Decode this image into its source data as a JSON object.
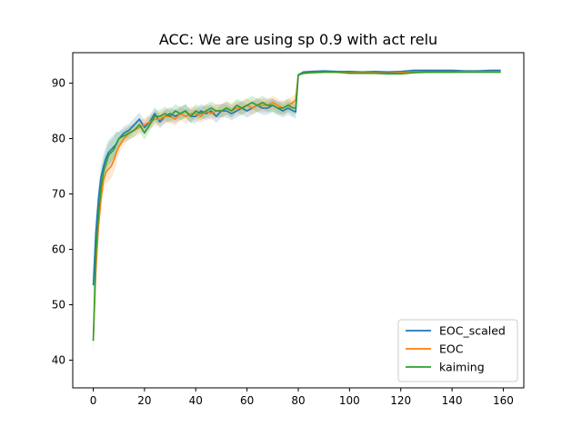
{
  "chart_data": {
    "type": "line",
    "title": "ACC: We are using sp 0.9 with act relu",
    "xlabel": "",
    "ylabel": "",
    "xlim": [
      -8,
      168
    ],
    "ylim": [
      35,
      95.5
    ],
    "xticks": [
      0,
      20,
      40,
      60,
      80,
      100,
      120,
      140,
      160
    ],
    "yticks": [
      40,
      50,
      60,
      70,
      80,
      90
    ],
    "grid": false,
    "legend_position": "lower-right",
    "series": [
      {
        "name": "EOC_scaled",
        "color": "#1f77b4",
        "x": [
          0,
          1,
          2,
          3,
          4,
          5,
          6,
          7,
          8,
          9,
          10,
          12,
          14,
          16,
          18,
          20,
          22,
          24,
          26,
          28,
          30,
          32,
          34,
          36,
          38,
          40,
          42,
          44,
          46,
          48,
          50,
          52,
          54,
          56,
          58,
          60,
          62,
          64,
          66,
          68,
          70,
          72,
          74,
          76,
          78,
          79,
          80,
          82,
          85,
          90,
          95,
          100,
          105,
          110,
          115,
          120,
          125,
          130,
          135,
          140,
          145,
          150,
          155,
          159
        ],
        "values": [
          53.5,
          63,
          69,
          73,
          75,
          76.5,
          77.5,
          78,
          78.5,
          79,
          80,
          81,
          81.5,
          82.5,
          83.5,
          82,
          83,
          84.5,
          83,
          84,
          84.5,
          84,
          84.5,
          85,
          84,
          84,
          85,
          84.5,
          85,
          84,
          85,
          85,
          84.5,
          85,
          85.5,
          85,
          85.5,
          86,
          85.5,
          85.5,
          86,
          85.5,
          85,
          85.5,
          85,
          84.8,
          91.5,
          92,
          92.1,
          92.2,
          92.1,
          92.1,
          92,
          92.1,
          92,
          92.1,
          92.3,
          92.3,
          92.3,
          92.3,
          92.2,
          92.2,
          92.3,
          92.3
        ]
      },
      {
        "name": "EOC",
        "color": "#ff7f0e",
        "x": [
          0,
          1,
          2,
          3,
          4,
          5,
          6,
          7,
          8,
          9,
          10,
          12,
          14,
          16,
          18,
          20,
          22,
          24,
          26,
          28,
          30,
          32,
          34,
          36,
          38,
          40,
          42,
          44,
          46,
          48,
          50,
          52,
          54,
          56,
          58,
          60,
          62,
          64,
          66,
          68,
          70,
          72,
          74,
          76,
          78,
          79,
          80,
          82,
          85,
          90,
          95,
          100,
          105,
          110,
          115,
          120,
          125,
          130,
          135,
          140,
          145,
          150,
          155,
          159
        ],
        "values": [
          43.5,
          56,
          64,
          69,
          72.5,
          74,
          74.5,
          75,
          76,
          77.5,
          78.5,
          80,
          81,
          81.5,
          82,
          82.5,
          83,
          83.5,
          83.5,
          84,
          84,
          83.5,
          84.5,
          84,
          84.5,
          84.5,
          84,
          85,
          84.5,
          85,
          85,
          85.5,
          85,
          85.5,
          85.5,
          86,
          85.5,
          86,
          86,
          86,
          86.5,
          86,
          85.5,
          86,
          86.5,
          87,
          91.5,
          91.8,
          91.9,
          92,
          92,
          91.9,
          91.9,
          91.9,
          91.8,
          91.9,
          92,
          92,
          92,
          92,
          92.1,
          92.1,
          92.1,
          92.1
        ]
      },
      {
        "name": "kaiming",
        "color": "#2ca02c",
        "x": [
          0,
          1,
          2,
          3,
          4,
          5,
          6,
          7,
          8,
          9,
          10,
          12,
          14,
          16,
          18,
          20,
          22,
          24,
          26,
          28,
          30,
          32,
          34,
          36,
          38,
          40,
          42,
          44,
          46,
          48,
          50,
          52,
          54,
          56,
          58,
          60,
          62,
          64,
          66,
          68,
          70,
          72,
          74,
          76,
          78,
          79,
          80,
          82,
          85,
          90,
          95,
          100,
          105,
          110,
          115,
          120,
          125,
          130,
          135,
          140,
          145,
          150,
          155,
          159
        ],
        "values": [
          43.5,
          59,
          66,
          71,
          74,
          75.5,
          77,
          77.5,
          78,
          79,
          80,
          80.5,
          81,
          81.5,
          82.5,
          81,
          82.5,
          84,
          84,
          84.5,
          84,
          85,
          84.5,
          85,
          84,
          85,
          84.5,
          85,
          85.5,
          85,
          85,
          85.5,
          85,
          86,
          85.5,
          86,
          86.5,
          86,
          86.5,
          86,
          86,
          85.5,
          85.5,
          86,
          85.5,
          85.5,
          91.5,
          91.8,
          91.9,
          92,
          92,
          91.8,
          91.8,
          91.8,
          91.7,
          91.7,
          91.9,
          92,
          92,
          92,
          92,
          92,
          92,
          92
        ]
      }
    ]
  }
}
